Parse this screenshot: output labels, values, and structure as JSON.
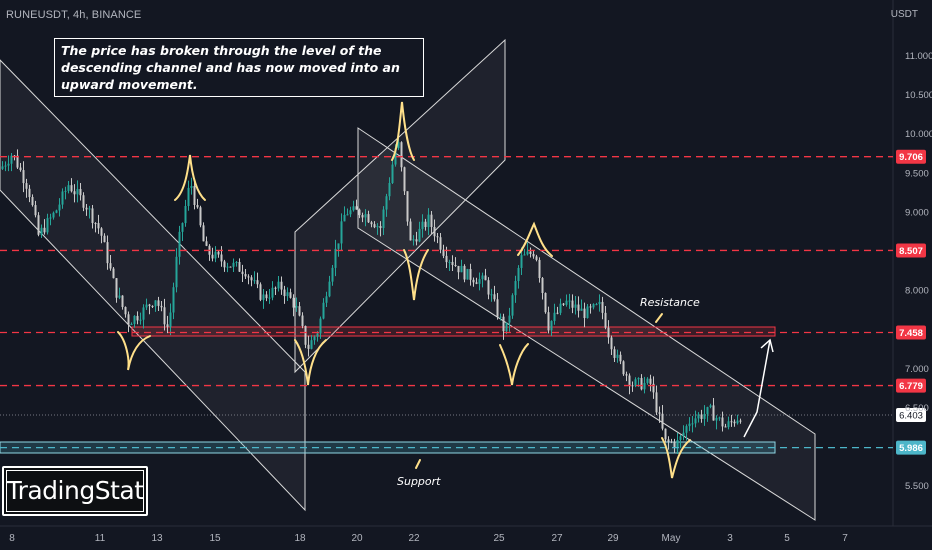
{
  "header": {
    "symbol": "RUNEUSDT, 4h, BINANCE",
    "currency": "USDT"
  },
  "note": "The price has broken through the level of the descending channel and has now moved into an upward movement.",
  "logo": "TradingStat",
  "annotations": {
    "resistance": "Resistance",
    "support": "Support"
  },
  "colors": {
    "background": "#131722",
    "bullish": "#26a69a",
    "bearish": "#c9c9c9",
    "level_line": "#f23645",
    "support_line": "#4db6c9",
    "channel": "#ffffff",
    "swing_marker": "#ffe08a"
  },
  "chart_data": {
    "type": "candlestick",
    "symbol": "RUNEUSDT",
    "timeframe": "4h",
    "exchange": "BINANCE",
    "ylim": [
      5.25,
      11.5
    ],
    "y_ticks": [
      5.5,
      6.0,
      6.5,
      7.0,
      7.5,
      8.0,
      8.5,
      9.0,
      9.5,
      10.0,
      10.5,
      11.0
    ],
    "y_tick_labels": [
      "5.500",
      "",
      "6.500",
      "7.000",
      "",
      "8.000",
      "",
      "9.000",
      "9.500",
      "10.000",
      "10.500",
      "11.000"
    ],
    "x_ticks": [
      "8",
      "11",
      "13",
      "15",
      "18",
      "20",
      "22",
      "25",
      "27",
      "29",
      "May",
      "3",
      "5",
      "7"
    ],
    "levels": [
      {
        "value": 9.706,
        "label": "9.706",
        "color": "#f23645"
      },
      {
        "value": 8.507,
        "label": "8.507",
        "color": "#f23645"
      },
      {
        "value": 7.458,
        "label": "7.458",
        "color": "#f23645"
      },
      {
        "value": 6.779,
        "label": "6.779",
        "color": "#f23645"
      },
      {
        "value": 5.986,
        "label": "5.986",
        "color": "#4db6c9"
      }
    ],
    "last_price": {
      "value": 6.403,
      "label": "6.403"
    },
    "price_path": [
      {
        "x": 0,
        "y": 9.55
      },
      {
        "x": 12,
        "y": 9.75
      },
      {
        "x": 28,
        "y": 9.3
      },
      {
        "x": 38,
        "y": 8.7
      },
      {
        "x": 55,
        "y": 9.0
      },
      {
        "x": 68,
        "y": 9.35
      },
      {
        "x": 85,
        "y": 9.1
      },
      {
        "x": 100,
        "y": 8.75
      },
      {
        "x": 115,
        "y": 8.0
      },
      {
        "x": 128,
        "y": 7.6
      },
      {
        "x": 140,
        "y": 7.7
      },
      {
        "x": 155,
        "y": 7.9
      },
      {
        "x": 168,
        "y": 7.5
      },
      {
        "x": 178,
        "y": 8.6
      },
      {
        "x": 190,
        "y": 9.4
      },
      {
        "x": 205,
        "y": 8.5
      },
      {
        "x": 225,
        "y": 8.35
      },
      {
        "x": 245,
        "y": 8.25
      },
      {
        "x": 262,
        "y": 7.9
      },
      {
        "x": 280,
        "y": 8.05
      },
      {
        "x": 295,
        "y": 7.8
      },
      {
        "x": 307,
        "y": 7.25
      },
      {
        "x": 318,
        "y": 7.5
      },
      {
        "x": 330,
        "y": 8.25
      },
      {
        "x": 345,
        "y": 9.0
      },
      {
        "x": 362,
        "y": 9.0
      },
      {
        "x": 380,
        "y": 8.8
      },
      {
        "x": 397,
        "y": 9.95
      },
      {
        "x": 410,
        "y": 8.6
      },
      {
        "x": 428,
        "y": 8.9
      },
      {
        "x": 445,
        "y": 8.45
      },
      {
        "x": 465,
        "y": 8.2
      },
      {
        "x": 485,
        "y": 8.1
      },
      {
        "x": 505,
        "y": 7.45
      },
      {
        "x": 520,
        "y": 8.4
      },
      {
        "x": 535,
        "y": 8.5
      },
      {
        "x": 548,
        "y": 7.55
      },
      {
        "x": 565,
        "y": 7.85
      },
      {
        "x": 585,
        "y": 7.7
      },
      {
        "x": 600,
        "y": 7.8
      },
      {
        "x": 615,
        "y": 7.15
      },
      {
        "x": 632,
        "y": 6.8
      },
      {
        "x": 650,
        "y": 6.8
      },
      {
        "x": 665,
        "y": 6.05
      },
      {
        "x": 678,
        "y": 6.05
      },
      {
        "x": 690,
        "y": 6.35
      },
      {
        "x": 710,
        "y": 6.45
      },
      {
        "x": 725,
        "y": 6.25
      },
      {
        "x": 740,
        "y": 6.4
      }
    ]
  }
}
